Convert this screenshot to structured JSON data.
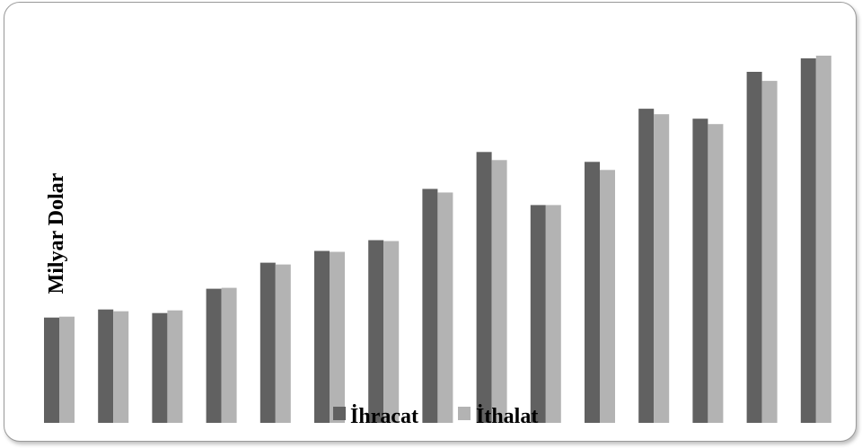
{
  "chart_data": {
    "type": "bar",
    "title": "",
    "xlabel": "",
    "ylabel": "Milyar Dolar",
    "ylim": [
      0,
      410
    ],
    "grid": false,
    "legend_position": "bottom-center",
    "categories": [
      "",
      "",
      "",
      "",
      "",
      "",
      "",
      "",
      "",
      "",
      "",
      "",
      "",
      "",
      ""
    ],
    "series": [
      {
        "name": "İhracat",
        "color": "#616161",
        "values": [
          117,
          126,
          122,
          149,
          178,
          191,
          203,
          260,
          301,
          242,
          290,
          349,
          338,
          390,
          405
        ]
      },
      {
        "name": "İthalat",
        "color": "#b3b3b3",
        "values": [
          118,
          124,
          125,
          150,
          176,
          190,
          202,
          256,
          292,
          242,
          281,
          343,
          332,
          380,
          408
        ]
      }
    ]
  }
}
